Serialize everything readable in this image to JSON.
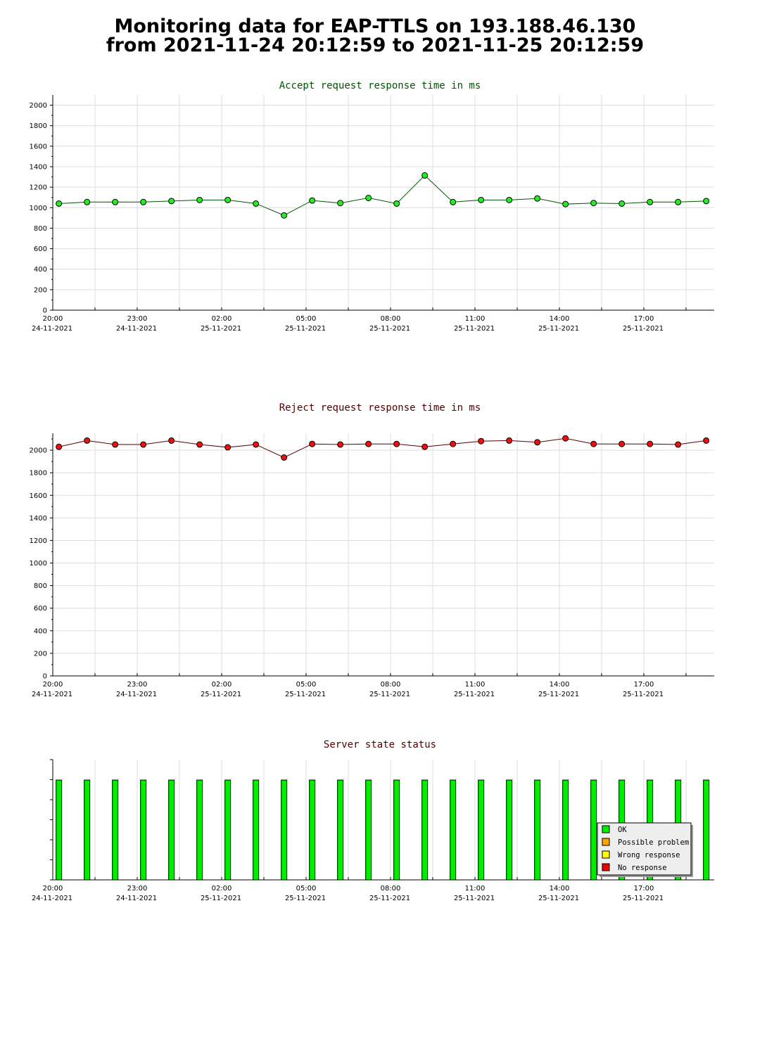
{
  "page": {
    "title_line1": "Monitoring data for EAP-TTLS on 193.188.46.130",
    "title_line2": "from 2021-11-24 20:12:59 to 2021-11-25 20:12:59"
  },
  "x_axis": {
    "times": [
      "20:00",
      "23:00",
      "02:00",
      "05:00",
      "08:00",
      "11:00",
      "14:00",
      "17:00"
    ],
    "dates": [
      "24-11-2021",
      "24-11-2021",
      "25-11-2021",
      "25-11-2021",
      "25-11-2021",
      "25-11-2021",
      "25-11-2021",
      "25-11-2021"
    ]
  },
  "legend": {
    "items": [
      {
        "label": "OK",
        "color": "#00ee00"
      },
      {
        "label": "Possible problem",
        "color": "#ffa500"
      },
      {
        "label": "Wrong response",
        "color": "#ffff00"
      },
      {
        "label": "No response",
        "color": "#ee0000"
      }
    ]
  },
  "chart_data": [
    {
      "type": "line",
      "title": "Accept request response time in ms",
      "title_color": "#005500",
      "marker_color": "#22ee22",
      "line_color": "#005500",
      "ylim": [
        0,
        2100
      ],
      "yticks": [
        0,
        200,
        400,
        600,
        800,
        1000,
        1200,
        1400,
        1600,
        1800,
        2000
      ],
      "x_range_hours": [
        20.0,
        43.5
      ],
      "x": [
        "20:13",
        "21:13",
        "22:13",
        "23:13",
        "00:13",
        "01:13",
        "02:13",
        "03:13",
        "04:13",
        "05:13",
        "06:13",
        "07:13",
        "08:13",
        "09:13",
        "10:13",
        "11:13",
        "12:13",
        "13:13",
        "14:13",
        "15:13",
        "16:13",
        "17:13",
        "18:13",
        "19:13"
      ],
      "values": [
        1040,
        1055,
        1055,
        1055,
        1065,
        1075,
        1075,
        1040,
        925,
        1070,
        1045,
        1095,
        1040,
        1315,
        1055,
        1075,
        1075,
        1090,
        1035,
        1045,
        1040,
        1055,
        1055,
        1065
      ],
      "grid": true
    },
    {
      "type": "line",
      "title": "Reject request response time in ms",
      "title_color": "#550000",
      "marker_color": "#ee1111",
      "line_color": "#550000",
      "ylim": [
        0,
        2150
      ],
      "yticks": [
        0,
        200,
        400,
        600,
        800,
        1000,
        1200,
        1400,
        1600,
        1800,
        2000
      ],
      "x_range_hours": [
        20.0,
        43.5
      ],
      "x": [
        "20:13",
        "21:13",
        "22:13",
        "23:13",
        "00:13",
        "01:13",
        "02:13",
        "03:13",
        "04:13",
        "05:13",
        "06:13",
        "07:13",
        "08:13",
        "09:13",
        "10:13",
        "11:13",
        "12:13",
        "13:13",
        "14:13",
        "15:13",
        "16:13",
        "17:13",
        "18:13",
        "19:13"
      ],
      "values": [
        2030,
        2085,
        2050,
        2050,
        2085,
        2050,
        2025,
        2050,
        1935,
        2055,
        2050,
        2055,
        2055,
        2030,
        2055,
        2080,
        2085,
        2070,
        2105,
        2055,
        2055,
        2055,
        2050,
        2085
      ],
      "grid": true
    },
    {
      "type": "bar",
      "title": "Server state status",
      "title_color": "#550000",
      "bar_color": "#00ee00",
      "x_range_hours": [
        20.0,
        43.5
      ],
      "x": [
        "20:13",
        "21:13",
        "22:13",
        "23:13",
        "00:13",
        "01:13",
        "02:13",
        "03:13",
        "04:13",
        "05:13",
        "06:13",
        "07:13",
        "08:13",
        "09:13",
        "10:13",
        "11:13",
        "12:13",
        "13:13",
        "14:13",
        "15:13",
        "16:13",
        "17:13",
        "18:13",
        "19:13"
      ],
      "status": [
        "OK",
        "OK",
        "OK",
        "OK",
        "OK",
        "OK",
        "OK",
        "OK",
        "OK",
        "OK",
        "OK",
        "OK",
        "OK",
        "OK",
        "OK",
        "OK",
        "OK",
        "OK",
        "OK",
        "OK",
        "OK",
        "OK",
        "OK",
        "OK"
      ],
      "level": 0.83,
      "grid": false,
      "legend_position": "bottom-right"
    }
  ]
}
